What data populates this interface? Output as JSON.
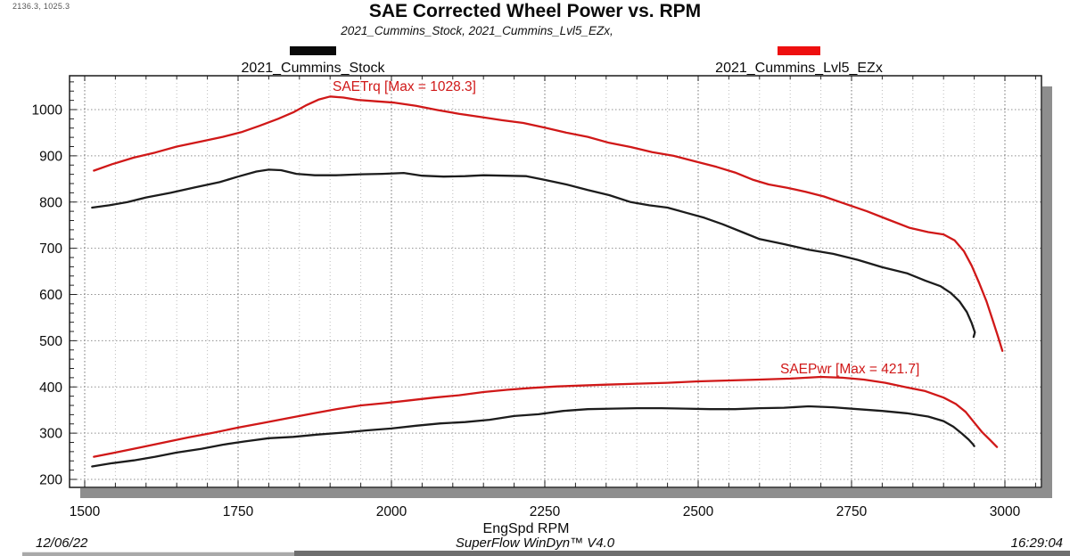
{
  "window": {
    "cursor_readout": "2136.3, 1025.3"
  },
  "header": {
    "title": "SAE Corrected Wheel Power vs. RPM",
    "subtitle": "2021_Cummins_Stock, 2021_Cummins_Lvl5_EZx,"
  },
  "footer": {
    "date": "12/06/22",
    "app": "SuperFlow WinDyn™ V4.0",
    "time": "16:29:04"
  },
  "chart_data": {
    "type": "line",
    "title": "SAE Corrected Wheel Power vs. RPM",
    "xlabel": "EngSpd RPM",
    "ylabel": "",
    "xlim": [
      1475,
      3060
    ],
    "ylim": [
      185,
      1070
    ],
    "grid": "dotted",
    "x_ticks": [
      1500,
      1750,
      2000,
      2250,
      2500,
      2750,
      3000
    ],
    "x_minor_step": 50,
    "y_ticks": [
      200,
      300,
      400,
      500,
      600,
      700,
      800,
      900,
      1000
    ],
    "y_minor_step": 20,
    "legend": [
      {
        "label": "2021_Cummins_Stock",
        "color": "#0a0a0a"
      },
      {
        "label": "2021_Cummins_Lvl5_EZx",
        "color": "#ee0f0f"
      }
    ],
    "annotations": [
      {
        "text": "SAETrq [Max = 1028.3]",
        "color": "#d01818"
      },
      {
        "text": "SAEPwr [Max = 421.7]",
        "color": "#d01818"
      }
    ],
    "series": [
      {
        "name": "2021_Cummins_Stock SAETrq",
        "color": "#1c1c1c",
        "points": [
          [
            1512,
            788
          ],
          [
            1540,
            793
          ],
          [
            1570,
            800
          ],
          [
            1600,
            810
          ],
          [
            1640,
            820
          ],
          [
            1680,
            832
          ],
          [
            1720,
            843
          ],
          [
            1750,
            855
          ],
          [
            1780,
            866
          ],
          [
            1800,
            870
          ],
          [
            1820,
            869
          ],
          [
            1845,
            861
          ],
          [
            1875,
            858
          ],
          [
            1910,
            858
          ],
          [
            1950,
            860
          ],
          [
            1985,
            861
          ],
          [
            2020,
            863
          ],
          [
            2050,
            857
          ],
          [
            2085,
            855
          ],
          [
            2120,
            856
          ],
          [
            2150,
            858
          ],
          [
            2185,
            857
          ],
          [
            2220,
            856
          ],
          [
            2250,
            848
          ],
          [
            2285,
            838
          ],
          [
            2320,
            826
          ],
          [
            2355,
            815
          ],
          [
            2390,
            800
          ],
          [
            2420,
            793
          ],
          [
            2450,
            788
          ],
          [
            2480,
            777
          ],
          [
            2510,
            766
          ],
          [
            2540,
            752
          ],
          [
            2570,
            736
          ],
          [
            2600,
            720
          ],
          [
            2640,
            709
          ],
          [
            2680,
            697
          ],
          [
            2720,
            688
          ],
          [
            2760,
            675
          ],
          [
            2800,
            659
          ],
          [
            2840,
            646
          ],
          [
            2870,
            630
          ],
          [
            2895,
            618
          ],
          [
            2912,
            603
          ],
          [
            2926,
            585
          ],
          [
            2938,
            562
          ],
          [
            2946,
            538
          ],
          [
            2951,
            518
          ],
          [
            2949,
            508
          ]
        ]
      },
      {
        "name": "2021_Cummins_Lvl5_EZx SAETrq",
        "color": "#d01818",
        "points": [
          [
            1515,
            868
          ],
          [
            1545,
            882
          ],
          [
            1580,
            896
          ],
          [
            1615,
            907
          ],
          [
            1650,
            920
          ],
          [
            1690,
            931
          ],
          [
            1725,
            941
          ],
          [
            1755,
            951
          ],
          [
            1785,
            965
          ],
          [
            1815,
            980
          ],
          [
            1840,
            994
          ],
          [
            1862,
            1010
          ],
          [
            1882,
            1022
          ],
          [
            1900,
            1028.3
          ],
          [
            1922,
            1026
          ],
          [
            1945,
            1021
          ],
          [
            1975,
            1018
          ],
          [
            2005,
            1015
          ],
          [
            2040,
            1008
          ],
          [
            2075,
            999
          ],
          [
            2110,
            991
          ],
          [
            2145,
            984
          ],
          [
            2180,
            977
          ],
          [
            2215,
            971
          ],
          [
            2250,
            961
          ],
          [
            2285,
            950
          ],
          [
            2320,
            941
          ],
          [
            2355,
            928
          ],
          [
            2390,
            919
          ],
          [
            2425,
            908
          ],
          [
            2460,
            900
          ],
          [
            2495,
            888
          ],
          [
            2530,
            876
          ],
          [
            2560,
            864
          ],
          [
            2590,
            848
          ],
          [
            2615,
            838
          ],
          [
            2645,
            831
          ],
          [
            2675,
            822
          ],
          [
            2705,
            812
          ],
          [
            2740,
            796
          ],
          [
            2775,
            780
          ],
          [
            2810,
            762
          ],
          [
            2845,
            744
          ],
          [
            2875,
            735
          ],
          [
            2900,
            730
          ],
          [
            2918,
            717
          ],
          [
            2933,
            694
          ],
          [
            2946,
            662
          ],
          [
            2958,
            625
          ],
          [
            2970,
            585
          ],
          [
            2980,
            545
          ],
          [
            2989,
            508
          ],
          [
            2996,
            478
          ]
        ]
      },
      {
        "name": "2021_Cummins_Stock SAEPwr",
        "color": "#1c1c1c",
        "points": [
          [
            1512,
            228
          ],
          [
            1545,
            235
          ],
          [
            1580,
            241
          ],
          [
            1615,
            249
          ],
          [
            1650,
            258
          ],
          [
            1690,
            266
          ],
          [
            1725,
            275
          ],
          [
            1760,
            282
          ],
          [
            1800,
            289
          ],
          [
            1840,
            292
          ],
          [
            1880,
            297
          ],
          [
            1920,
            301
          ],
          [
            1960,
            306
          ],
          [
            2000,
            310
          ],
          [
            2040,
            316
          ],
          [
            2080,
            321
          ],
          [
            2120,
            324
          ],
          [
            2160,
            329
          ],
          [
            2200,
            337
          ],
          [
            2240,
            341
          ],
          [
            2280,
            348
          ],
          [
            2320,
            352
          ],
          [
            2360,
            353
          ],
          [
            2400,
            354
          ],
          [
            2440,
            354
          ],
          [
            2480,
            353
          ],
          [
            2520,
            352
          ],
          [
            2560,
            352
          ],
          [
            2600,
            354
          ],
          [
            2640,
            355
          ],
          [
            2680,
            358
          ],
          [
            2720,
            356
          ],
          [
            2760,
            352
          ],
          [
            2800,
            348
          ],
          [
            2840,
            343
          ],
          [
            2875,
            336
          ],
          [
            2900,
            326
          ],
          [
            2916,
            314
          ],
          [
            2930,
            299
          ],
          [
            2941,
            286
          ],
          [
            2948,
            276
          ],
          [
            2950,
            272
          ]
        ]
      },
      {
        "name": "2021_Cummins_Lvl5_EZx SAEPwr",
        "color": "#d01818",
        "points": [
          [
            1515,
            249
          ],
          [
            1550,
            258
          ],
          [
            1590,
            269
          ],
          [
            1630,
            280
          ],
          [
            1670,
            291
          ],
          [
            1710,
            301
          ],
          [
            1750,
            312
          ],
          [
            1790,
            322
          ],
          [
            1830,
            332
          ],
          [
            1870,
            342
          ],
          [
            1910,
            352
          ],
          [
            1950,
            360
          ],
          [
            1990,
            365
          ],
          [
            2030,
            371
          ],
          [
            2070,
            377
          ],
          [
            2110,
            382
          ],
          [
            2150,
            389
          ],
          [
            2190,
            394
          ],
          [
            2230,
            398
          ],
          [
            2270,
            401
          ],
          [
            2310,
            403
          ],
          [
            2350,
            405
          ],
          [
            2400,
            407
          ],
          [
            2450,
            409
          ],
          [
            2500,
            412
          ],
          [
            2550,
            414
          ],
          [
            2600,
            416
          ],
          [
            2650,
            418
          ],
          [
            2700,
            421.7
          ],
          [
            2735,
            420
          ],
          [
            2770,
            416
          ],
          [
            2805,
            409
          ],
          [
            2840,
            399
          ],
          [
            2870,
            391
          ],
          [
            2900,
            377
          ],
          [
            2920,
            363
          ],
          [
            2936,
            346
          ],
          [
            2950,
            323
          ],
          [
            2963,
            302
          ],
          [
            2976,
            285
          ],
          [
            2987,
            270
          ]
        ]
      }
    ]
  }
}
